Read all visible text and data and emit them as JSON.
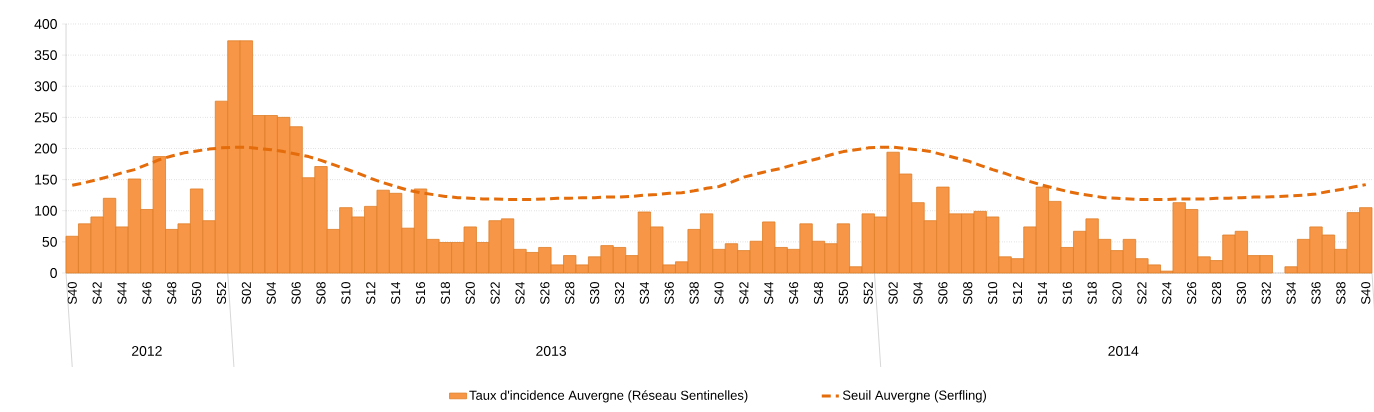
{
  "chart_data": {
    "type": "bar",
    "categories": [
      "S40",
      null,
      "S42",
      null,
      "S44",
      null,
      "S46",
      null,
      "S48",
      null,
      "S50",
      null,
      "S52",
      null,
      "S02",
      null,
      "S04",
      null,
      "S06",
      null,
      "S08",
      null,
      "S10",
      null,
      "S12",
      null,
      "S14",
      null,
      "S16",
      null,
      "S18",
      null,
      "S20",
      null,
      "S22",
      null,
      "S24",
      null,
      "S26",
      null,
      "S28",
      null,
      "S30",
      null,
      "S32",
      null,
      "S34",
      null,
      "S36",
      null,
      "S38",
      null,
      "S40",
      null,
      "S42",
      null,
      "S44",
      null,
      "S46",
      null,
      "S48",
      null,
      "S50",
      null,
      "S52",
      null,
      "S02",
      null,
      "S04",
      null,
      "S06",
      null,
      "S08",
      null,
      "S10",
      null,
      "S12",
      null,
      "S14",
      null,
      "S16",
      null,
      "S18",
      null,
      "S20",
      null,
      "S22",
      null,
      "S24",
      null,
      "S26",
      null,
      "S28",
      null,
      "S30",
      null,
      "S32",
      null,
      "S34",
      null,
      "S36",
      null,
      "S38",
      null,
      "S40"
    ],
    "series": [
      {
        "name": "Taux d'incidence Auvergne (Réseau Sentinelles)",
        "color": "#f79646",
        "values": [
          59,
          79,
          90,
          120,
          74,
          151,
          102,
          187,
          70,
          79,
          135,
          84,
          276,
          373,
          373,
          253,
          253,
          250,
          235,
          153,
          171,
          70,
          105,
          90,
          107,
          133,
          128,
          72,
          135,
          54,
          49,
          49,
          74,
          49,
          84,
          87,
          38,
          33,
          41,
          13,
          28,
          13,
          26,
          44,
          41,
          28,
          98,
          74,
          13,
          18,
          70,
          95,
          38,
          47,
          36,
          51,
          82,
          41,
          38,
          79,
          51,
          47,
          79,
          10,
          95,
          90,
          194,
          159,
          113,
          84,
          138,
          95,
          95,
          99,
          90,
          26,
          23,
          74,
          138,
          115,
          41,
          67,
          87,
          54,
          36,
          54,
          23,
          13,
          3,
          113,
          102,
          26,
          20,
          61,
          67,
          28,
          28,
          null,
          10,
          54,
          74,
          61,
          38,
          97,
          105
        ]
      },
      {
        "name": "Seuil Auvergne (Serfling)",
        "type": "line",
        "color": "#e46c0a",
        "line_style": "dashed",
        "values": [
          141,
          145,
          150,
          155,
          161,
          166,
          174,
          182,
          188,
          193,
          196,
          199,
          201,
          202,
          202,
          200,
          198,
          195,
          191,
          187,
          181,
          174,
          167,
          160,
          152,
          145,
          139,
          133,
          129,
          126,
          123,
          121,
          120,
          119,
          119,
          118,
          118,
          118,
          119,
          120,
          120,
          121,
          121,
          122,
          122,
          123,
          125,
          126,
          128,
          129,
          132,
          136,
          139,
          146,
          154,
          159,
          164,
          168,
          174,
          179,
          184,
          190,
          195,
          198,
          201,
          202,
          202,
          200,
          198,
          195,
          190,
          185,
          180,
          173,
          166,
          160,
          153,
          147,
          141,
          136,
          131,
          127,
          124,
          121,
          120,
          119,
          118,
          118,
          118,
          119,
          119,
          119,
          120,
          120,
          121,
          122,
          122,
          123,
          124,
          125,
          127,
          131,
          134,
          138,
          142
        ]
      }
    ],
    "ylim": [
      0,
      400
    ],
    "yticks": [
      0,
      50,
      100,
      150,
      200,
      250,
      300,
      350,
      400
    ],
    "grid": "y",
    "legend": "bottom",
    "annotations": [
      "2012",
      "2013",
      "2014"
    ]
  }
}
